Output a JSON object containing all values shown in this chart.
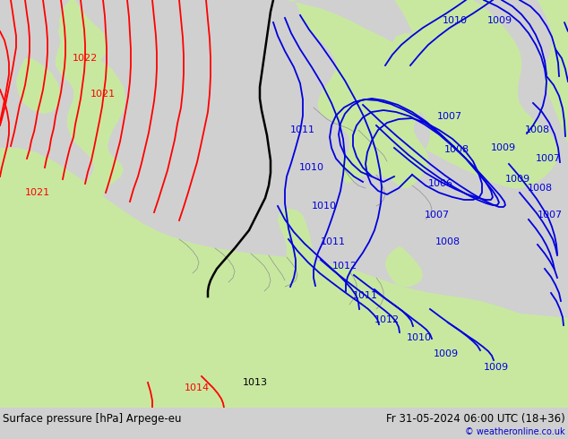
{
  "title_left": "Surface pressure [hPa] Arpege-eu",
  "title_right": "Fr 31-05-2024 06:00 UTC (18+36)",
  "copyright": "© weatheronline.co.uk",
  "bg_color": "#d0d0d0",
  "land_color": "#c8e8a0",
  "sea_color": "#c8ccd0",
  "border_color": "#909090",
  "red_color": "#ff0000",
  "blue_color": "#0000dd",
  "black_color": "#000000",
  "bottom_bg": "#ffffff",
  "bottom_text": "#000000",
  "copyright_color": "#0000cc",
  "figsize": [
    6.34,
    4.9
  ],
  "dpi": 100
}
